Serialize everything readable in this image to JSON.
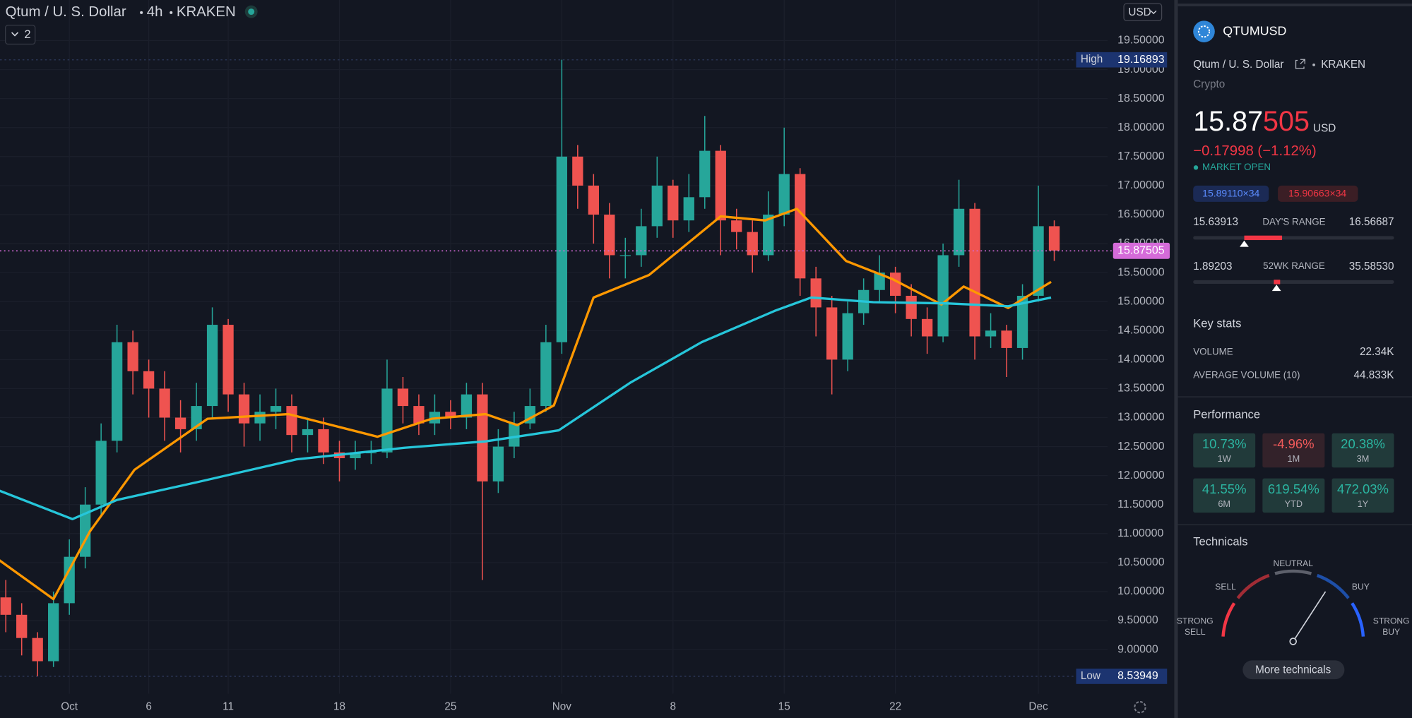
{
  "chart_data": {
    "type": "candlestick",
    "title": "Qtum / U. S. Dollar",
    "interval": "4h",
    "exchange": "KRAKEN",
    "indicator_count": 2,
    "currency": "USD",
    "xlim": [
      -4.365,
      65.36
    ],
    "ylim": [
      8.24,
      20.2
    ],
    "xticks": [
      {
        "value": 0,
        "label": "Oct"
      },
      {
        "value": 5,
        "label": "6"
      },
      {
        "value": 10,
        "label": "11"
      },
      {
        "value": 17,
        "label": "18"
      },
      {
        "value": 24,
        "label": "25"
      },
      {
        "value": 31,
        "label": "Nov"
      },
      {
        "value": 38,
        "label": "8"
      },
      {
        "value": 45,
        "label": "15"
      },
      {
        "value": 52,
        "label": "22"
      },
      {
        "value": 61,
        "label": "Dec"
      }
    ],
    "yticks": [
      {
        "value": 9,
        "label": "9.00000"
      },
      {
        "value": 9.5,
        "label": "9.50000"
      },
      {
        "value": 10,
        "label": "10.00000"
      },
      {
        "value": 10.5,
        "label": "10.50000"
      },
      {
        "value": 11,
        "label": "11.00000"
      },
      {
        "value": 11.5,
        "label": "11.50000"
      },
      {
        "value": 12,
        "label": "12.00000"
      },
      {
        "value": 12.5,
        "label": "12.50000"
      },
      {
        "value": 13,
        "label": "13.00000"
      },
      {
        "value": 13.5,
        "label": "13.50000"
      },
      {
        "value": 14,
        "label": "14.00000"
      },
      {
        "value": 14.5,
        "label": "14.50000"
      },
      {
        "value": 15,
        "label": "15.00000"
      },
      {
        "value": 15.5,
        "label": "15.50000"
      },
      {
        "value": 16,
        "label": "16.00000"
      },
      {
        "value": 16.5,
        "label": "16.50000"
      },
      {
        "value": 17,
        "label": "17.00000"
      },
      {
        "value": 17.5,
        "label": "17.50000"
      },
      {
        "value": 18,
        "label": "18.00000"
      },
      {
        "value": 18.5,
        "label": "18.50000"
      },
      {
        "value": 19,
        "label": "19.00000"
      },
      {
        "value": 19.5,
        "label": "19.50000"
      }
    ],
    "grid": true,
    "up_color": "#26a69a",
    "down_color": "#ef5350",
    "candles": {
      "x": [
        -4,
        -3,
        -2,
        -1,
        0,
        1,
        2,
        3,
        4,
        5,
        6,
        7,
        8,
        9,
        10,
        11,
        12,
        13,
        14,
        15,
        16,
        17,
        18,
        19,
        20,
        21,
        22,
        23,
        24,
        25,
        26,
        27,
        28,
        29,
        30,
        31,
        32,
        33,
        34,
        35,
        36,
        37,
        38,
        39,
        40,
        41,
        42,
        43,
        44,
        45,
        46,
        47,
        48,
        49,
        50,
        51,
        52,
        53,
        54,
        55,
        56,
        57,
        58,
        59,
        60,
        61,
        62
      ],
      "open": [
        9.9,
        9.6,
        9.2,
        8.8,
        9.8,
        10.6,
        11.5,
        12.6,
        14.3,
        13.8,
        13.5,
        13.0,
        12.8,
        13.2,
        14.6,
        13.4,
        12.9,
        13.1,
        13.2,
        12.7,
        12.8,
        12.4,
        12.3,
        12.4,
        12.4,
        13.5,
        13.2,
        12.9,
        13.1,
        13.0,
        13.4,
        11.9,
        12.5,
        12.9,
        13.2,
        14.3,
        17.5,
        17.0,
        16.5,
        15.8,
        15.8,
        16.3,
        17.0,
        16.4,
        16.8,
        17.6,
        16.4,
        16.2,
        15.8,
        16.5,
        17.2,
        15.4,
        14.9,
        14.0,
        14.8,
        15.2,
        15.5,
        15.1,
        14.7,
        14.4,
        15.8,
        16.6,
        14.4,
        14.5,
        14.2,
        15.1,
        16.3
      ],
      "high": [
        10.2,
        9.8,
        9.3,
        10.0,
        10.9,
        11.8,
        12.9,
        14.6,
        14.5,
        14.0,
        13.8,
        13.3,
        13.6,
        14.9,
        14.7,
        13.6,
        13.4,
        13.5,
        13.4,
        13.0,
        13.0,
        12.6,
        12.6,
        12.6,
        14.0,
        13.7,
        13.4,
        13.4,
        13.3,
        13.6,
        13.6,
        12.8,
        13.1,
        13.5,
        14.6,
        19.17,
        17.7,
        17.2,
        16.7,
        16.1,
        16.6,
        17.5,
        17.1,
        17.2,
        18.2,
        17.7,
        16.6,
        16.4,
        16.9,
        18.0,
        17.3,
        15.6,
        15.1,
        15.0,
        15.4,
        15.8,
        15.6,
        15.3,
        14.9,
        16.0,
        17.1,
        16.7,
        14.8,
        14.6,
        15.3,
        17.0,
        16.4
      ],
      "low": [
        9.3,
        8.9,
        8.54,
        8.7,
        9.6,
        10.4,
        11.3,
        12.4,
        13.4,
        13.0,
        12.6,
        12.4,
        12.6,
        13.0,
        13.1,
        12.5,
        12.6,
        12.8,
        12.4,
        12.4,
        12.2,
        11.9,
        12.1,
        12.2,
        12.3,
        12.9,
        12.7,
        12.7,
        12.8,
        12.8,
        10.2,
        11.7,
        12.3,
        12.8,
        13.1,
        14.1,
        16.6,
        16.0,
        15.4,
        15.4,
        15.6,
        16.1,
        16.1,
        16.2,
        16.6,
        15.8,
        15.9,
        15.5,
        15.7,
        16.3,
        15.1,
        14.4,
        13.4,
        13.8,
        14.6,
        15.0,
        14.8,
        14.4,
        14.1,
        14.3,
        15.6,
        14.0,
        14.2,
        13.7,
        14.0,
        15.0,
        15.7
      ],
      "close": [
        9.6,
        9.2,
        8.8,
        9.8,
        10.6,
        11.5,
        12.6,
        14.3,
        13.8,
        13.5,
        13.0,
        12.8,
        13.2,
        14.6,
        13.4,
        12.9,
        13.1,
        13.2,
        12.7,
        12.8,
        12.4,
        12.3,
        12.4,
        12.4,
        13.5,
        13.2,
        12.9,
        13.1,
        13.0,
        13.4,
        11.9,
        12.5,
        12.9,
        13.2,
        14.3,
        17.5,
        17.0,
        16.5,
        15.8,
        15.8,
        16.3,
        17.0,
        16.4,
        16.8,
        17.6,
        16.4,
        16.2,
        15.8,
        16.5,
        17.2,
        15.4,
        14.9,
        14.0,
        14.8,
        15.2,
        15.5,
        15.1,
        14.7,
        14.4,
        15.8,
        16.6,
        14.4,
        14.5,
        14.2,
        15.1,
        16.3,
        15.88
      ]
    },
    "lines": [
      {
        "color": "#ff9800",
        "x": [
          -4.4,
          -1,
          1.3,
          4.1,
          8.7,
          13.8,
          19.4,
          22.8,
          26.2,
          28.2,
          30.5,
          33,
          36.5,
          41,
          43.8,
          45.8,
          48.9,
          51.8,
          54.9,
          56.3,
          59.1,
          61.8
        ],
        "values": [
          10.54,
          9.87,
          11.04,
          12.1,
          12.98,
          13.06,
          12.67,
          12.98,
          13.06,
          12.87,
          13.21,
          15.07,
          15.46,
          16.47,
          16.4,
          16.6,
          15.7,
          15.39,
          14.95,
          15.26,
          14.89,
          15.34
        ]
      },
      {
        "color": "#26c6da",
        "x": [
          -4.4,
          0.2,
          3,
          8.1,
          14.3,
          21.1,
          26.2,
          30.8,
          35.3,
          39.8,
          44.4,
          46.7,
          50.6,
          55.2,
          59.1,
          61.8
        ],
        "values": [
          11.74,
          11.25,
          11.58,
          11.89,
          12.28,
          12.48,
          12.59,
          12.78,
          13.6,
          14.3,
          14.84,
          15.07,
          14.99,
          14.97,
          14.92,
          15.07
        ]
      }
    ],
    "price_lines": [
      {
        "name": "High",
        "value": 19.16893
      },
      {
        "name": "Low",
        "value": 8.53949
      }
    ],
    "last": 15.87505,
    "last_color": "#d56bd9"
  },
  "panel": {
    "symbol": "QTUMUSD",
    "description": "Qtum / U. S. Dollar",
    "exchange": "KRAKEN",
    "category": "Crypto",
    "price_main": "15.87",
    "price_tail": "505",
    "price_unit": "USD",
    "change": "−0.17998 (−1.12%)",
    "status": "MARKET OPEN",
    "bid": "15.89110×34",
    "ask": "15.90663×34",
    "ranges": [
      {
        "name": "DAY'S RANGE",
        "low": 15.63913,
        "high": 16.56687
      },
      {
        "name": "52WK RANGE",
        "low": 1.89203,
        "high": {
          "value": 35.5853,
          "label": "35.58530"
        }
      }
    ],
    "key_stats": {
      "title": "Key stats",
      "rows": [
        [
          "VOLUME",
          "22.34K"
        ],
        [
          "AVERAGE VOLUME (10)",
          "44.833K"
        ]
      ]
    },
    "performance": {
      "title": "Performance",
      "tiles": [
        {
          "value": {
            "value": 10.73,
            "label": "10.73%"
          },
          "period": "1W"
        },
        {
          "value": {
            "value": -4.96,
            "label": "-4.96%"
          },
          "period": "1M"
        },
        {
          "value": {
            "value": 20.38,
            "label": "20.38%"
          },
          "period": "3M"
        },
        {
          "value": {
            "value": 41.55,
            "label": "41.55%"
          },
          "period": "6M"
        },
        {
          "value": {
            "value": 619.54,
            "label": "619.54%"
          },
          "period": "YTD"
        },
        {
          "value": {
            "value": 472.03,
            "label": "472.03%"
          },
          "period": "1Y"
        }
      ]
    },
    "technicals": {
      "title": "Technicals",
      "neutral": "NEUTRAL",
      "sell": "SELL",
      "buy": "BUY",
      "strong_sell": [
        "STRONG",
        "SELL"
      ],
      "strong_buy": [
        "STRONG",
        "BUY"
      ],
      "button": "More technicals"
    }
  }
}
